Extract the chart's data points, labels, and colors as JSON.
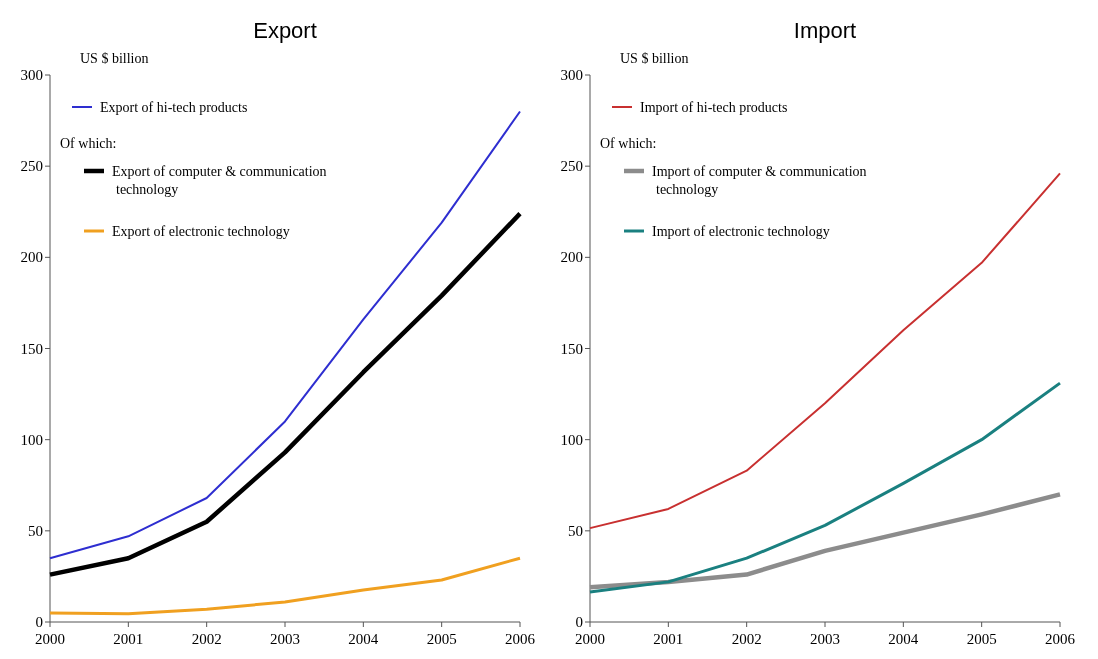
{
  "chart_data": [
    {
      "type": "line",
      "title": "Export",
      "ylabel": "US $ billion",
      "x": [
        2000,
        2001,
        2002,
        2003,
        2004,
        2005,
        2006
      ],
      "xlim": [
        2000,
        2006
      ],
      "xticks": [
        2000,
        2001,
        2002,
        2003,
        2004,
        2005,
        2006
      ],
      "ylim": [
        0,
        300
      ],
      "yticks": [
        0,
        50,
        100,
        150,
        200,
        250,
        300
      ],
      "grid": false,
      "legend": "top left",
      "annotations": [
        "Of which:"
      ],
      "series": [
        {
          "name": "Export of hi-tech products",
          "color": "#2e2ed0",
          "values": [
            35,
            47,
            68,
            110,
            166,
            219,
            280
          ]
        },
        {
          "name": "Export of computer & communication technology",
          "color": "#000000",
          "values": [
            26,
            35,
            55,
            93,
            137,
            179,
            224
          ]
        },
        {
          "name": "Export of electronic technology",
          "color": "#f0a020",
          "values": [
            5,
            4.5,
            7,
            11,
            17.5,
            23,
            35
          ]
        }
      ]
    },
    {
      "type": "line",
      "title": "Import",
      "ylabel": "US $ billion",
      "x": [
        2000,
        2001,
        2002,
        2003,
        2004,
        2005,
        2006
      ],
      "xlim": [
        2000,
        2006
      ],
      "xticks": [
        2000,
        2001,
        2002,
        2003,
        2004,
        2005,
        2006
      ],
      "ylim": [
        0,
        300
      ],
      "yticks": [
        0,
        50,
        100,
        150,
        200,
        250,
        300
      ],
      "grid": false,
      "legend": "top left",
      "annotations": [
        "Of which:"
      ],
      "series": [
        {
          "name": "Import of hi-tech products",
          "color": "#c83030",
          "values": [
            51.5,
            62,
            83,
            120,
            160,
            197,
            246
          ]
        },
        {
          "name": "Import of computer & communication technology",
          "color": "#8c8c8c",
          "values": [
            19,
            22,
            26,
            39,
            49,
            59,
            70
          ]
        },
        {
          "name": "Import of electronic technology",
          "color": "#1a8080",
          "values": [
            16.5,
            22,
            35,
            53,
            76,
            100,
            131
          ]
        }
      ]
    }
  ]
}
